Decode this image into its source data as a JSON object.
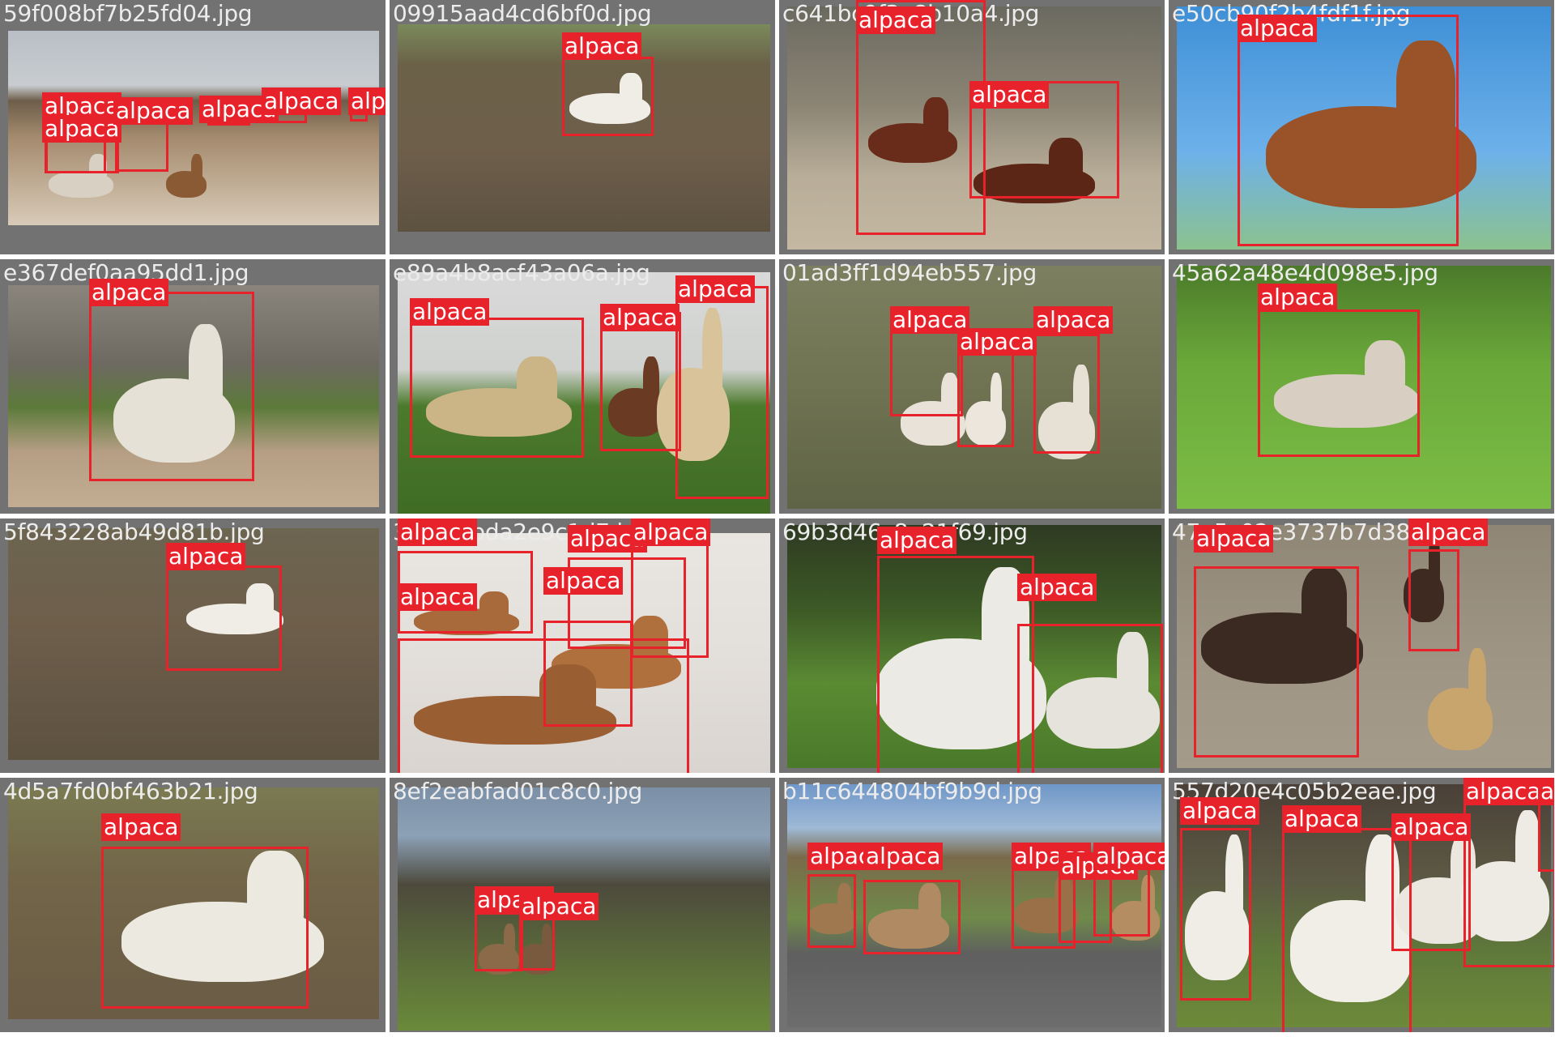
{
  "tiles": [
    {
      "file": "59f008bf7b25fd04.jpg",
      "scene": "linear-gradient(180deg,#b9bfc6 0%,#c8ccd0 28%,#6d5e4a 36%,#a58b6e 55%,#d8cbb8 100%)",
      "animals": [
        {
          "c": "#8a5a34"
        },
        {
          "c": "#d9d0c4"
        }
      ],
      "boxes": [
        {
          "l": "alpaca"
        },
        {
          "l": "alpaca"
        },
        {
          "l": "alpaca"
        },
        {
          "l": "alpaca"
        },
        {
          "l": "alpaca"
        },
        {
          "l": "alpaca"
        }
      ]
    },
    {
      "file": "09915aad4cd6bf0d.jpg",
      "scene": "linear-gradient(180deg,#7a8a5a 0%,#6b6048 20%,#6e5f4b 60%,#5d5140 100%)",
      "animals": [
        {
          "c": "#efede6"
        }
      ],
      "boxes": [
        {
          "l": "alpaca"
        }
      ]
    },
    {
      "file": "c641bc9f3e8b10a4.jpg",
      "scene": "linear-gradient(180deg,#6b6a60 0%,#8b8474 40%,#b8ad98 70%,#c4b8a2 100%)",
      "animals": [
        {
          "c": "#6a2c1a"
        },
        {
          "c": "#5b2616"
        }
      ],
      "boxes": [
        {
          "l": "alpaca"
        },
        {
          "l": "alpaca"
        }
      ]
    },
    {
      "file": "e50cb90f2b4fdf1f.jpg",
      "scene": "linear-gradient(180deg,#3e8fd6 0%,#6db1ea 60%,#8cc28e 100%)",
      "animals": [
        {
          "c": "#9a5328"
        }
      ],
      "boxes": [
        {
          "l": "alpaca"
        }
      ]
    },
    {
      "file": "e367def0aa95dd1.jpg",
      "scene": "linear-gradient(180deg,#8a857c 0%,#6e6a62 35%,#5c7a3a 55%,#b59e84 75%,#c2ad92 100%)",
      "animals": [
        {
          "c": "#e6e1d6"
        }
      ],
      "boxes": [
        {
          "l": "alpaca"
        }
      ]
    },
    {
      "file": "e89a4b8acf43a06a.jpg",
      "scene": "linear-gradient(180deg,#d9d9d9 0%,#cfd2cf 40%,#4c7a2c 55%,#3f6b24 100%)",
      "animals": [
        {
          "c": "#cbb486"
        },
        {
          "c": "#6a3a22"
        },
        {
          "c": "#d8c39a"
        }
      ],
      "boxes": [
        {
          "l": "alpaca"
        },
        {
          "l": "alpaca"
        },
        {
          "l": "alpaca"
        }
      ]
    },
    {
      "file": "01ad3ff1d94eb557.jpg",
      "scene": "linear-gradient(180deg,#7c8060 0%,#6f7352 50%,#5f6446 100%)",
      "animals": [
        {
          "c": "#e9e2d8"
        },
        {
          "c": "#ece6dc"
        },
        {
          "c": "#e7e0d5"
        }
      ],
      "boxes": [
        {
          "l": "alpaca"
        },
        {
          "l": "alpaca"
        },
        {
          "l": "alpaca"
        }
      ]
    },
    {
      "file": "45a62a48e4d098e5.jpg",
      "scene": "linear-gradient(180deg,#4b7a2a 0%,#6aa83a 40%,#7cbd45 100%)",
      "animals": [
        {
          "c": "#d8cfc2"
        }
      ],
      "boxes": [
        {
          "l": "alpaca"
        }
      ]
    },
    {
      "file": "5f843228ab49d81b.jpg",
      "scene": "linear-gradient(180deg,#6c6550 0%,#6e5f4b 40%,#5d5140 100%)",
      "animals": [
        {
          "c": "#efede6"
        }
      ],
      "boxes": [
        {
          "l": "alpaca"
        }
      ]
    },
    {
      "file": "3a4f0bbda2e9c1d7.jpg",
      "scene": "linear-gradient(180deg,#e9e6e2 0%,#e3dfdb 50%,#d9d4cf 100%)",
      "animals": [
        {
          "c": "#a86a3a"
        },
        {
          "c": "#b0703e"
        },
        {
          "c": "#9a5e33"
        }
      ],
      "boxes": [
        {
          "l": "alpaca"
        },
        {
          "l": "alpaca"
        },
        {
          "l": "alpaca"
        },
        {
          "l": "alpaca"
        },
        {
          "l": "alpaca"
        }
      ]
    },
    {
      "file": "69b3d46c8e21f69.jpg",
      "scene": "linear-gradient(180deg,#2e3a22 0%,#3d5a26 35%,#5b8a33 65%,#4a7a2a 100%)",
      "animals": [
        {
          "c": "#eceae4"
        },
        {
          "c": "#e6e3dc"
        }
      ],
      "boxes": [
        {
          "l": "alpaca"
        },
        {
          "l": "alpaca"
        }
      ]
    },
    {
      "file": "47a5c02e3737b7d38.jpg",
      "scene": "linear-gradient(180deg,#8f8676 0%,#9d9483 50%,#a59b8a 100%)",
      "animals": [
        {
          "c": "#3a2a22"
        },
        {
          "c": "#3e2a20"
        },
        {
          "c": "#c9a56e"
        }
      ],
      "boxes": [
        {
          "l": "alpaca"
        },
        {
          "l": "alpaca"
        }
      ]
    },
    {
      "file": "4d5a7fd0bf463b21.jpg",
      "scene": "linear-gradient(180deg,#7a7a52 0%,#726548 40%,#6a5c45 100%)",
      "animals": [
        {
          "c": "#ece9e1"
        }
      ],
      "boxes": [
        {
          "l": "alpaca"
        }
      ]
    },
    {
      "file": "8ef2eabfad01c8c0.jpg",
      "scene": "linear-gradient(180deg,#7b8fa6 0%,#8ca0b6 20%,#4d4a3c 40%,#5a6b3a 70%,#6a8a3a 100%)",
      "animals": [
        {
          "c": "#8a6a48"
        },
        {
          "c": "#7a5a3e"
        }
      ],
      "boxes": [
        {
          "l": "alpaca"
        },
        {
          "l": "alpaca"
        }
      ]
    },
    {
      "file": "b11c644804bf9b9d.jpg",
      "scene": "linear-gradient(180deg,#6f97c8 0%,#9fb9d6 18%,#7a6a4a 30%,#6f8a4a 55%,#5f5f5f 70%,#6d6d6d 100%)",
      "animals": [
        {
          "c": "#a07850"
        },
        {
          "c": "#b08a62"
        },
        {
          "c": "#9a7048"
        },
        {
          "c": "#b58d62"
        }
      ],
      "boxes": [
        {
          "l": "alpaca"
        },
        {
          "l": "alpaca"
        },
        {
          "l": "alpaca"
        },
        {
          "l": "alpaca"
        },
        {
          "l": "alpaca"
        },
        {
          "l": "alpaca"
        }
      ]
    },
    {
      "file": "557d20e4c05b2eae.jpg",
      "scene": "linear-gradient(180deg,#4a4038 0%,#5c5a44 40%,#5f7a3a 70%,#6d8a3a 100%)",
      "animals": [
        {
          "c": "#f0ede6"
        },
        {
          "c": "#f1eee8"
        },
        {
          "c": "#ebe7df"
        },
        {
          "c": "#eeebe4"
        }
      ],
      "boxes": [
        {
          "l": "alpaca"
        },
        {
          "l": "alpaca"
        },
        {
          "l": "alpaca"
        },
        {
          "l": "alpaca"
        },
        {
          "l": "alpaca"
        }
      ]
    }
  ]
}
